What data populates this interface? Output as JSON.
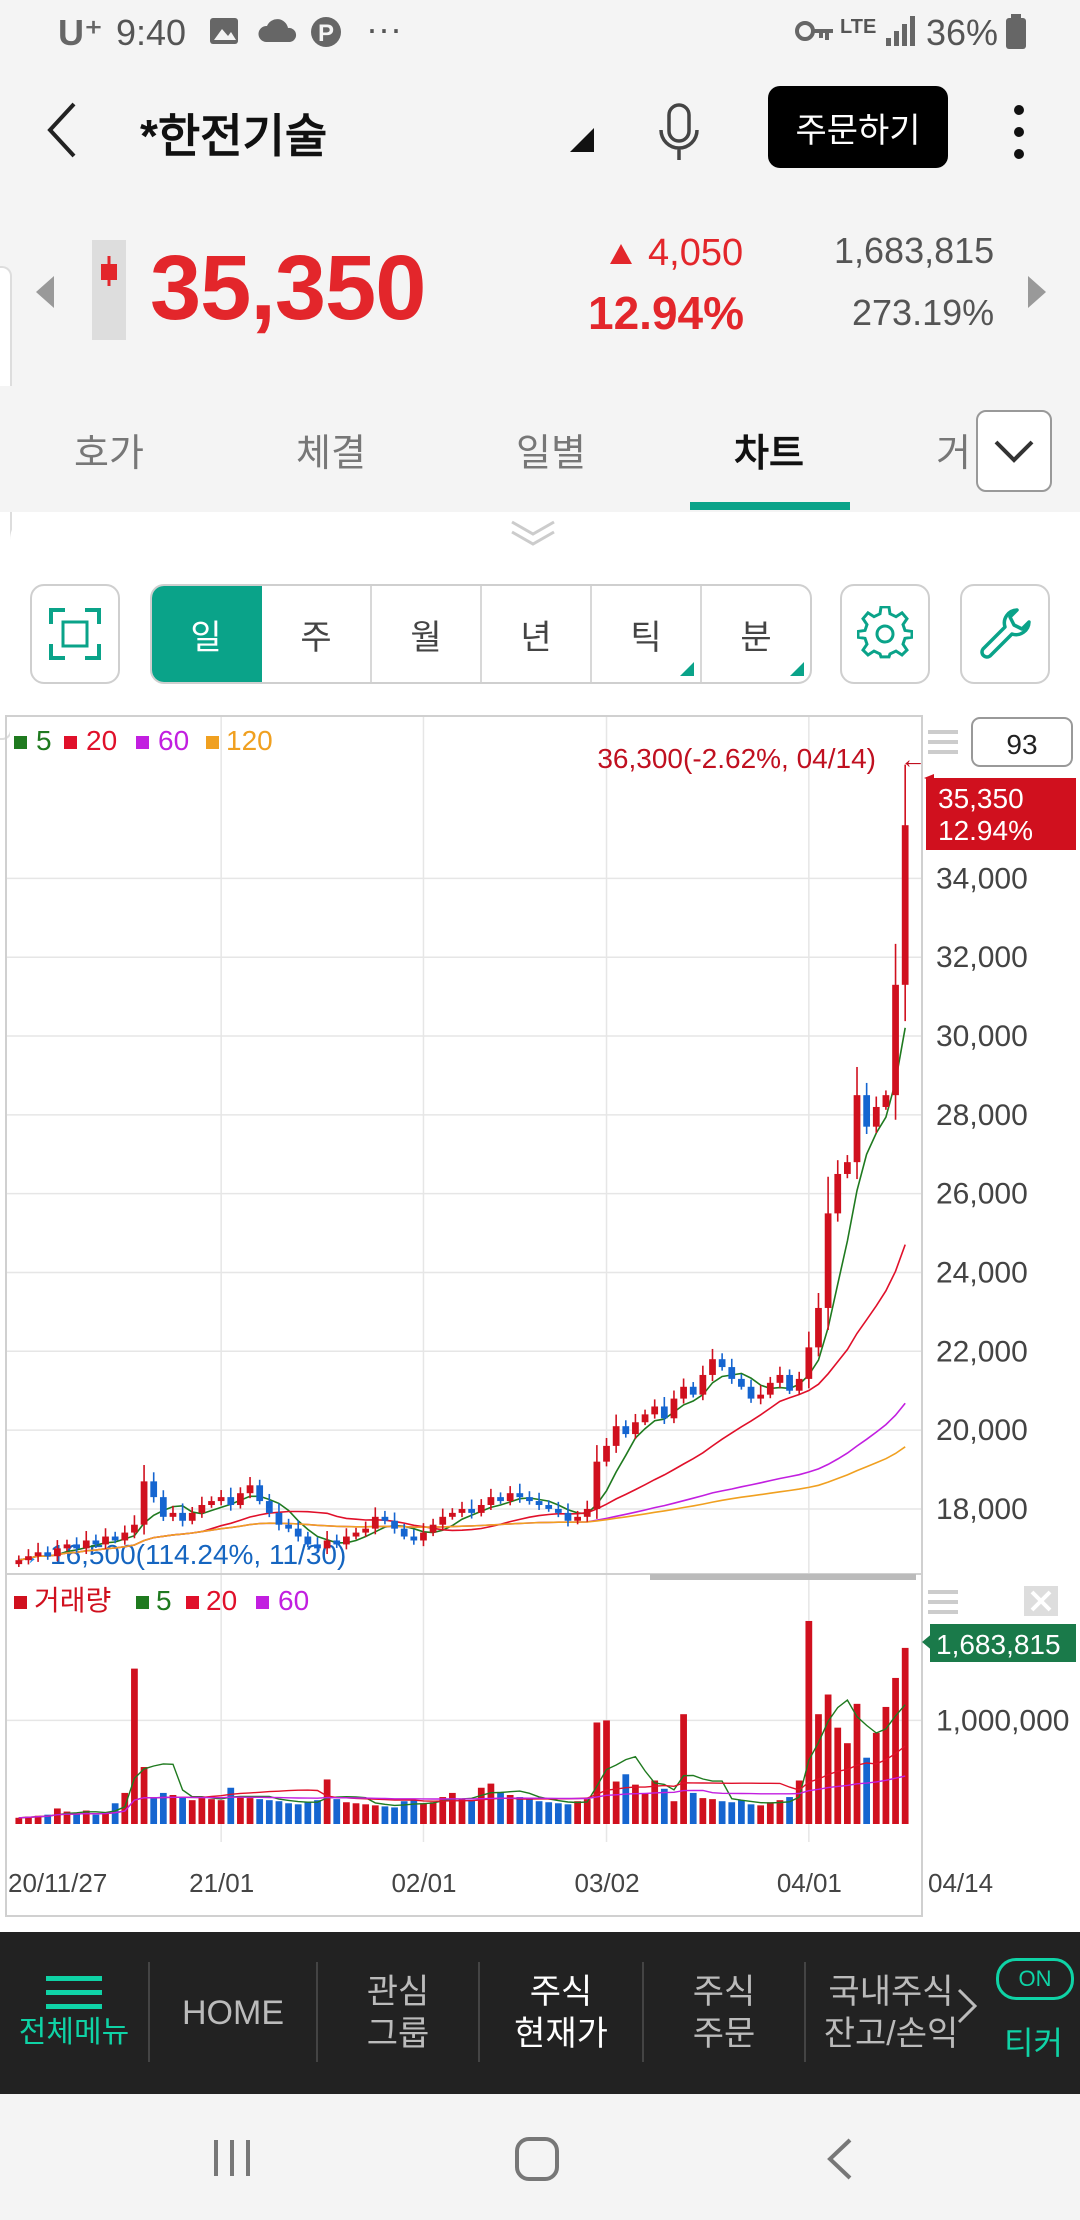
{
  "status_bar": {
    "carrier": "U⁺",
    "time": "9:40",
    "dots": "···",
    "network": "LTE",
    "battery": "36%"
  },
  "header": {
    "stock_name": "*한전기술",
    "order_button": "주문하기"
  },
  "price": {
    "current": "35,350",
    "change": "4,050",
    "change_pct": "12.94%",
    "volume": "1,683,815",
    "volume_ratio": "273.19%"
  },
  "tabs": [
    "호가",
    "체결",
    "일별",
    "차트",
    "거"
  ],
  "active_tab": "차트",
  "toolbar": {
    "periods": [
      "일",
      "주",
      "월",
      "년",
      "틱",
      "분"
    ],
    "active_period": "일"
  },
  "chart_data": {
    "type": "candlestick",
    "legend": [
      {
        "name": "5",
        "color": "#1f7a1f"
      },
      {
        "name": "20",
        "color": "#e0102a"
      },
      {
        "name": "60",
        "color": "#c21fe0"
      },
      {
        "name": "120",
        "color": "#f0a020"
      }
    ],
    "count_box": "93",
    "high_annotation": "36,300(-2.62%, 04/14)",
    "low_annotation": "16,500(114.24%, 11/30)",
    "current_tag": {
      "price": "35,350",
      "pct": "12.94%"
    },
    "y_ticks": [
      "34,000",
      "32,000",
      "30,000",
      "28,000",
      "26,000",
      "24,000",
      "22,000",
      "20,000",
      "18,000"
    ],
    "y_tick_values": [
      34000,
      32000,
      30000,
      28000,
      26000,
      24000,
      22000,
      20000,
      18000
    ],
    "ylim": [
      16400,
      36700
    ],
    "x_ticks": [
      "20/11/27",
      "21/01",
      "02/01",
      "03/02",
      "04/01",
      "04/14"
    ],
    "closes": [
      16700,
      16800,
      16900,
      16800,
      17000,
      17100,
      17000,
      17200,
      17100,
      17300,
      17200,
      17400,
      17600,
      18700,
      18300,
      17800,
      17900,
      17700,
      17900,
      18100,
      18200,
      18300,
      18100,
      18400,
      18600,
      18200,
      17900,
      17600,
      17500,
      17300,
      17100,
      17000,
      17200,
      17100,
      17300,
      17400,
      17500,
      17800,
      17700,
      17500,
      17300,
      17200,
      17400,
      17600,
      17800,
      17900,
      18000,
      17900,
      18100,
      18300,
      18200,
      18400,
      18300,
      18200,
      18100,
      18000,
      17900,
      17700,
      17800,
      18000,
      19200,
      19600,
      20100,
      19900,
      20200,
      20400,
      20600,
      20300,
      20800,
      21100,
      20900,
      21400,
      21800,
      21600,
      21300,
      21100,
      20800,
      20900,
      21200,
      21400,
      21000,
      21300,
      22100,
      23100,
      25500,
      26500,
      26800,
      28500,
      27700,
      28200,
      28500,
      31300,
      35350
    ],
    "volume": {
      "legend": [
        {
          "name": "거래량",
          "color": "#d0101e"
        },
        {
          "name": "5",
          "color": "#1f7a1f"
        },
        {
          "name": "20",
          "color": "#e0102a"
        },
        {
          "name": "60",
          "color": "#c21fe0"
        }
      ],
      "current": "1,683,815",
      "y_ticks": [
        "1,000,000"
      ],
      "y_tick_values": [
        1000000
      ],
      "ymax": 1950000,
      "values": [
        60000,
        70000,
        80000,
        90000,
        150000,
        120000,
        100000,
        130000,
        90000,
        110000,
        200000,
        300000,
        1500000,
        550000,
        250000,
        300000,
        280000,
        260000,
        230000,
        250000,
        240000,
        230000,
        350000,
        260000,
        250000,
        240000,
        230000,
        220000,
        200000,
        190000,
        210000,
        230000,
        430000,
        240000,
        210000,
        200000,
        190000,
        180000,
        170000,
        160000,
        220000,
        230000,
        200000,
        210000,
        260000,
        300000,
        240000,
        230000,
        350000,
        390000,
        310000,
        280000,
        260000,
        240000,
        220000,
        210000,
        200000,
        190000,
        220000,
        240000,
        980000,
        1000000,
        410000,
        480000,
        380000,
        290000,
        420000,
        340000,
        220000,
        1060000,
        300000,
        250000,
        240000,
        220000,
        210000,
        230000,
        190000,
        180000,
        210000,
        230000,
        260000,
        420000,
        1960000,
        1060000,
        1250000,
        930000,
        780000,
        1160000,
        640000,
        880000,
        1130000,
        1410000,
        1700000
      ]
    }
  },
  "bottom_nav": {
    "items": [
      "전체메뉴",
      "HOME",
      "관심\n그룹",
      "주식\n현재가",
      "주식\n주문",
      "국내주식\n잔고/손익"
    ],
    "active": "주식\n현재가",
    "ticker_label": "티커",
    "toggle": "ON"
  }
}
